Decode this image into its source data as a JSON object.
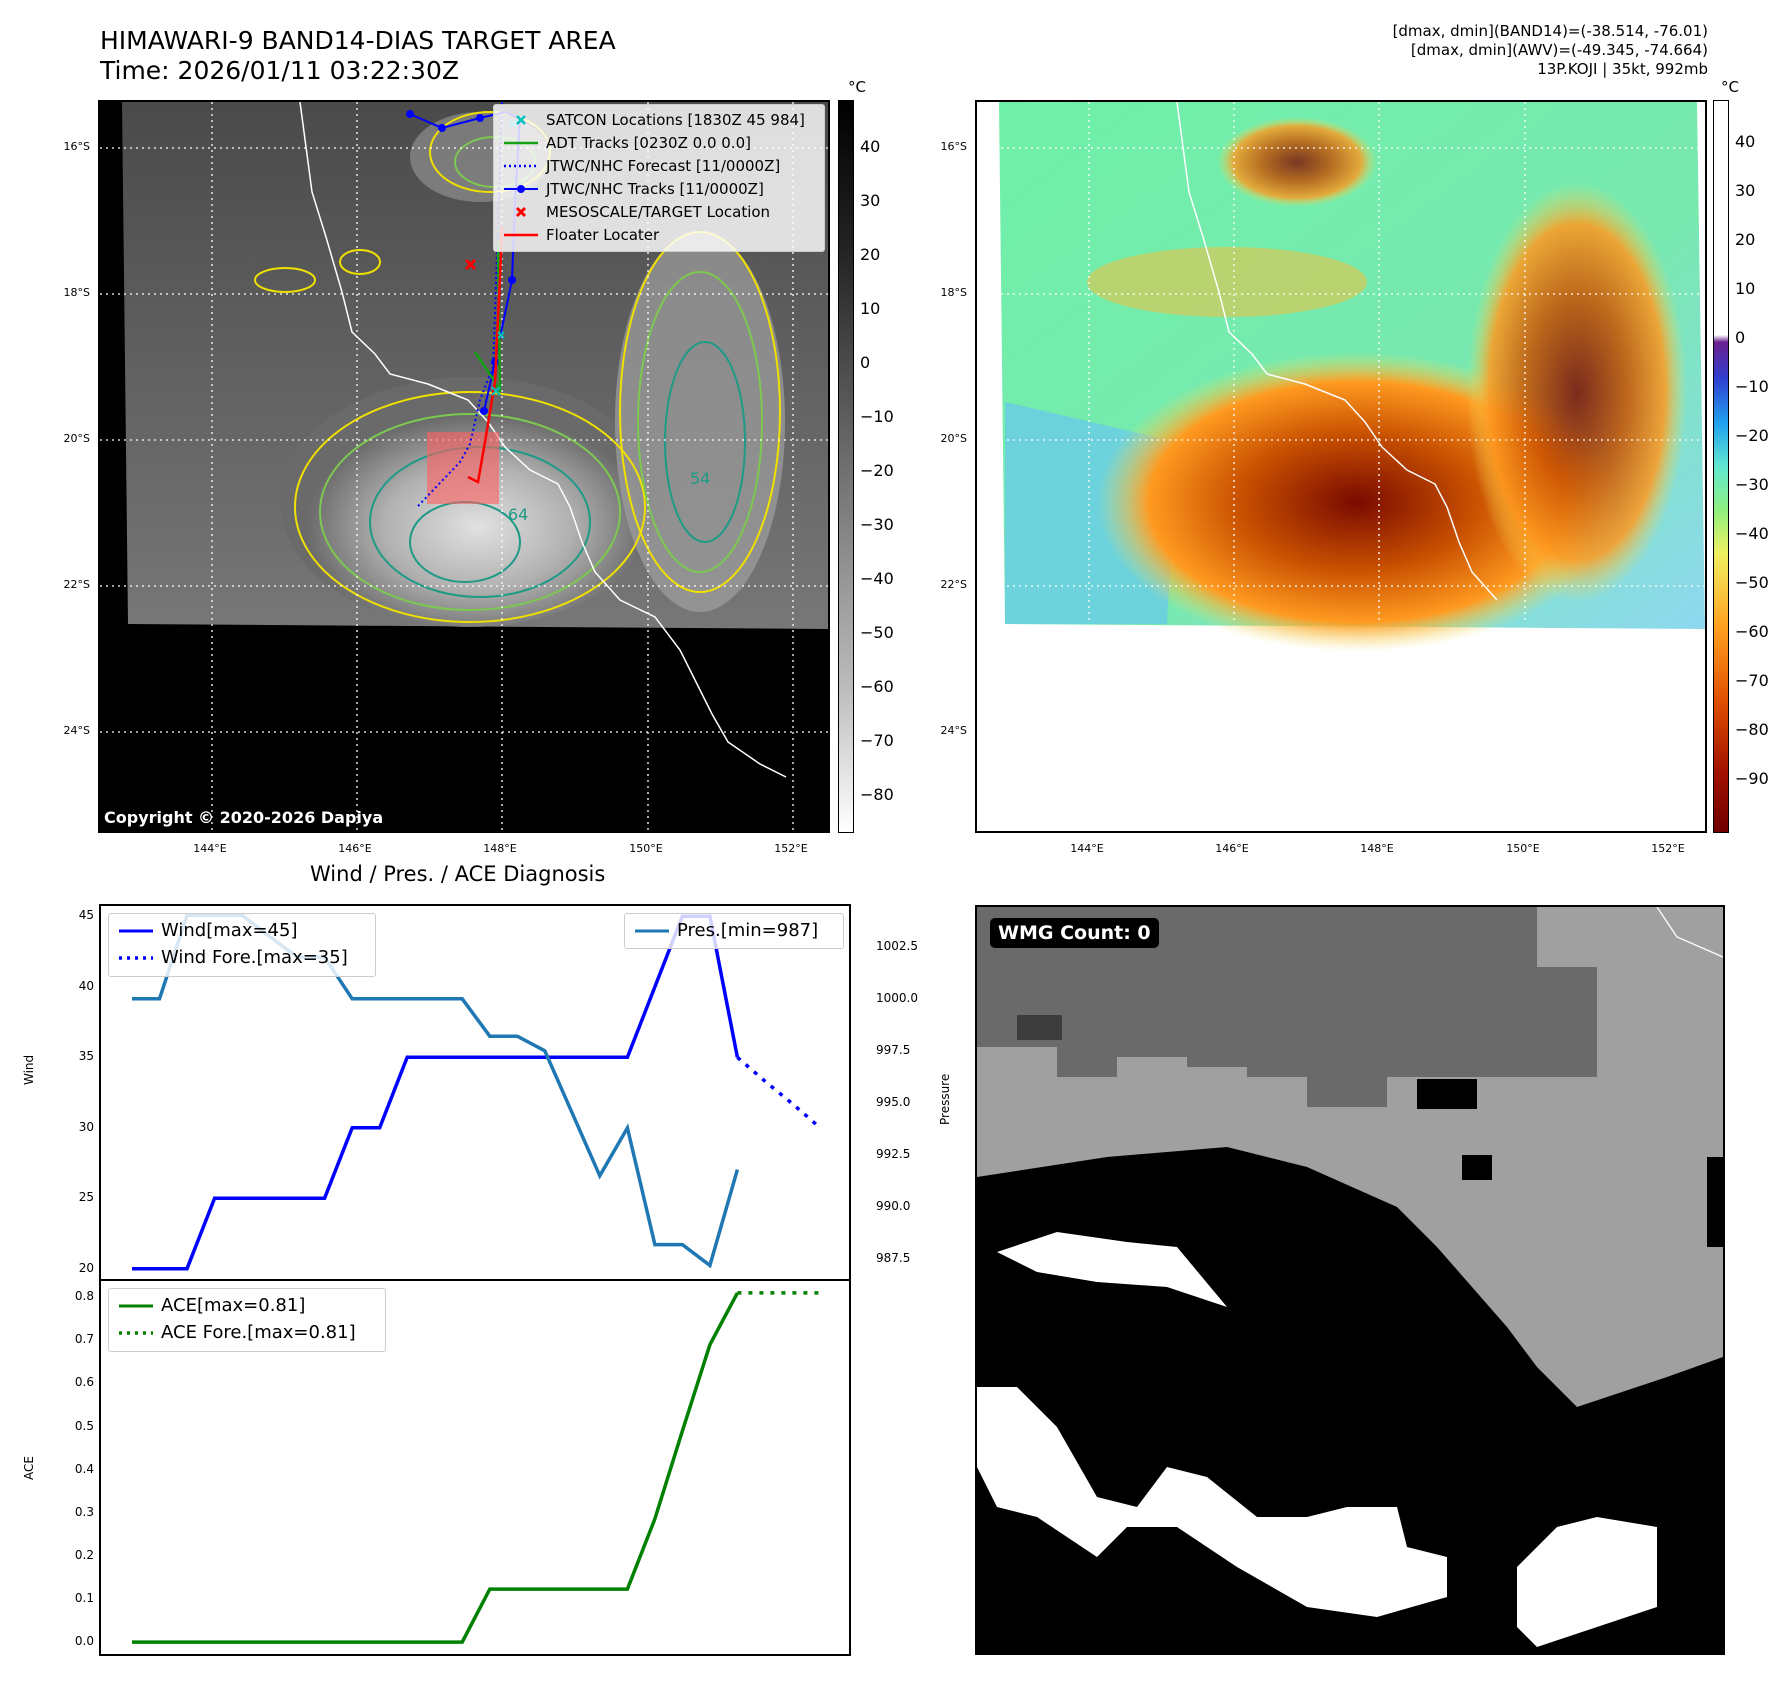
{
  "header": {
    "title_line1": "HIMAWARI-9 BAND14-DIAS TARGET AREA",
    "title_line2": "Time: 2026/01/11 03:22:30Z",
    "info_line1": "[dmax, dmin](BAND14)=(-38.514, -76.01)",
    "info_line2": "[dmax, dmin](AWV)=(-49.345, -74.664)",
    "info_line3": "13P.KOJI | 35kt, 992mb"
  },
  "map": {
    "lat_labels": [
      "16°S",
      "18°S",
      "20°S",
      "22°S",
      "24°S"
    ],
    "lon_labels": [
      "144°E",
      "146°E",
      "148°E",
      "150°E",
      "152°E"
    ],
    "copyright": "Copyright © 2020-2026 Dapiya",
    "contour_labels": [
      "54",
      "64"
    ],
    "colors": {
      "yellow": "#f0e000",
      "green": "#7dc850",
      "teal": "#1f9a86",
      "blue": "#0000ff",
      "red": "#ff0000",
      "cyan": "#00c0c0"
    }
  },
  "colorbar_left": {
    "unit": "°C",
    "ticks": [
      "40",
      "30",
      "20",
      "10",
      "0",
      "−10",
      "−20",
      "−30",
      "−40",
      "−50",
      "−60",
      "−70",
      "−80"
    ]
  },
  "colorbar_right": {
    "unit": "°C",
    "ticks": [
      "40",
      "30",
      "20",
      "10",
      "0",
      "−10",
      "−20",
      "−30",
      "−40",
      "−50",
      "−60",
      "−70",
      "−80",
      "−90"
    ]
  },
  "legend": {
    "items": [
      {
        "label": "SATCON Locations [1830Z 45 984]",
        "icon": "cyan-x-marker"
      },
      {
        "label": "ADT Tracks [0230Z 0.0 0.0]",
        "icon": "green-line"
      },
      {
        "label": "JTWC/NHC Forecast [11/0000Z]",
        "icon": "blue-dotted-line"
      },
      {
        "label": "JTWC/NHC Tracks [11/0000Z]",
        "icon": "blue-line-dot-marker"
      },
      {
        "label": "MESOSCALE/TARGET Location",
        "icon": "red-x-marker"
      },
      {
        "label": "Floater Locater",
        "icon": "red-line"
      }
    ]
  },
  "diagnosis": {
    "title": "Wind / Pres. / ACE Diagnosis",
    "wind_ylabel": "Wind",
    "pres_ylabel": "Pressure",
    "ace_ylabel": "ACE",
    "wind_legend": "Wind[max=45]",
    "wind_fore_legend": "Wind Fore.[max=35]",
    "pres_legend": "Pres.[min=987]",
    "ace_legend": "ACE[max=0.81]",
    "ace_fore_legend": "ACE Fore.[max=0.81]",
    "wind_ticks": [
      "45",
      "40",
      "35",
      "30",
      "25",
      "20"
    ],
    "pres_ticks": [
      "1002.5",
      "1000.0",
      "997.5",
      "995.0",
      "992.5",
      "990.0",
      "987.5"
    ],
    "ace_ticks": [
      "0.8",
      "0.7",
      "0.6",
      "0.5",
      "0.4",
      "0.3",
      "0.2",
      "0.1",
      "0.0"
    ]
  },
  "wmg": {
    "badge": "WMG Count: 0"
  },
  "chart_data": {
    "type": "line",
    "title": "Wind / Pres. / ACE Diagnosis",
    "x_index": [
      0,
      1,
      2,
      3,
      4,
      5,
      6,
      7,
      8,
      9,
      10,
      11,
      12,
      13,
      14,
      15,
      16,
      17,
      18,
      19,
      20,
      21,
      22,
      23,
      24,
      25
    ],
    "series": [
      {
        "name": "Wind[max=45]",
        "axis": "wind",
        "x": [
          0,
          1,
          2,
          3,
          4,
          5,
          6,
          7,
          8,
          9,
          10,
          11,
          12,
          13,
          14,
          15,
          16,
          17,
          18,
          19,
          20,
          21,
          22
        ],
        "values": [
          20,
          20,
          20,
          25,
          25,
          25,
          25,
          25,
          30,
          30,
          35,
          35,
          35,
          35,
          35,
          35,
          35,
          35,
          35,
          40,
          45,
          45,
          35
        ]
      },
      {
        "name": "Wind Fore.[max=35]",
        "axis": "wind",
        "x": [
          22,
          23,
          24,
          25
        ],
        "values": [
          35,
          33.3,
          31.7,
          30
        ]
      },
      {
        "name": "Pres.[min=987]",
        "axis": "pressure",
        "x": [
          0,
          1,
          2,
          3,
          4,
          5,
          6,
          7,
          8,
          9,
          10,
          11,
          12,
          13,
          14,
          15,
          16,
          17,
          18,
          19,
          20,
          21,
          22
        ],
        "values": [
          1000,
          1000,
          1004,
          1004,
          1004,
          1003,
          1002,
          1002,
          1000,
          1000,
          1000,
          1000,
          1000,
          998.2,
          998.2,
          997.5,
          994.5,
          991.5,
          993.8,
          988.2,
          988.2,
          987.2,
          991.8
        ]
      },
      {
        "name": "ACE[max=0.81]",
        "axis": "ace",
        "x": [
          0,
          1,
          2,
          3,
          4,
          5,
          6,
          7,
          8,
          9,
          10,
          11,
          12,
          13,
          14,
          15,
          16,
          17,
          18,
          19,
          20,
          21,
          22
        ],
        "values": [
          0,
          0,
          0,
          0,
          0,
          0,
          0,
          0,
          0,
          0,
          0,
          0,
          0,
          0.123,
          0.123,
          0.123,
          0.123,
          0.123,
          0.123,
          0.286,
          0.49,
          0.69,
          0.81
        ]
      },
      {
        "name": "ACE Fore.[max=0.81]",
        "axis": "ace",
        "x": [
          22,
          23,
          24,
          25
        ],
        "values": [
          0.81,
          0.81,
          0.81,
          0.81
        ]
      }
    ],
    "wind_ylim": [
      19.2,
      45.8
    ],
    "pres_ylim": [
      986.5,
      1004.5
    ],
    "ace_ylim": [
      -0.03,
      0.84
    ],
    "grid": false,
    "legend_positions": {
      "wind": "top-left",
      "pressure": "top-right",
      "ace": "top-left"
    }
  }
}
